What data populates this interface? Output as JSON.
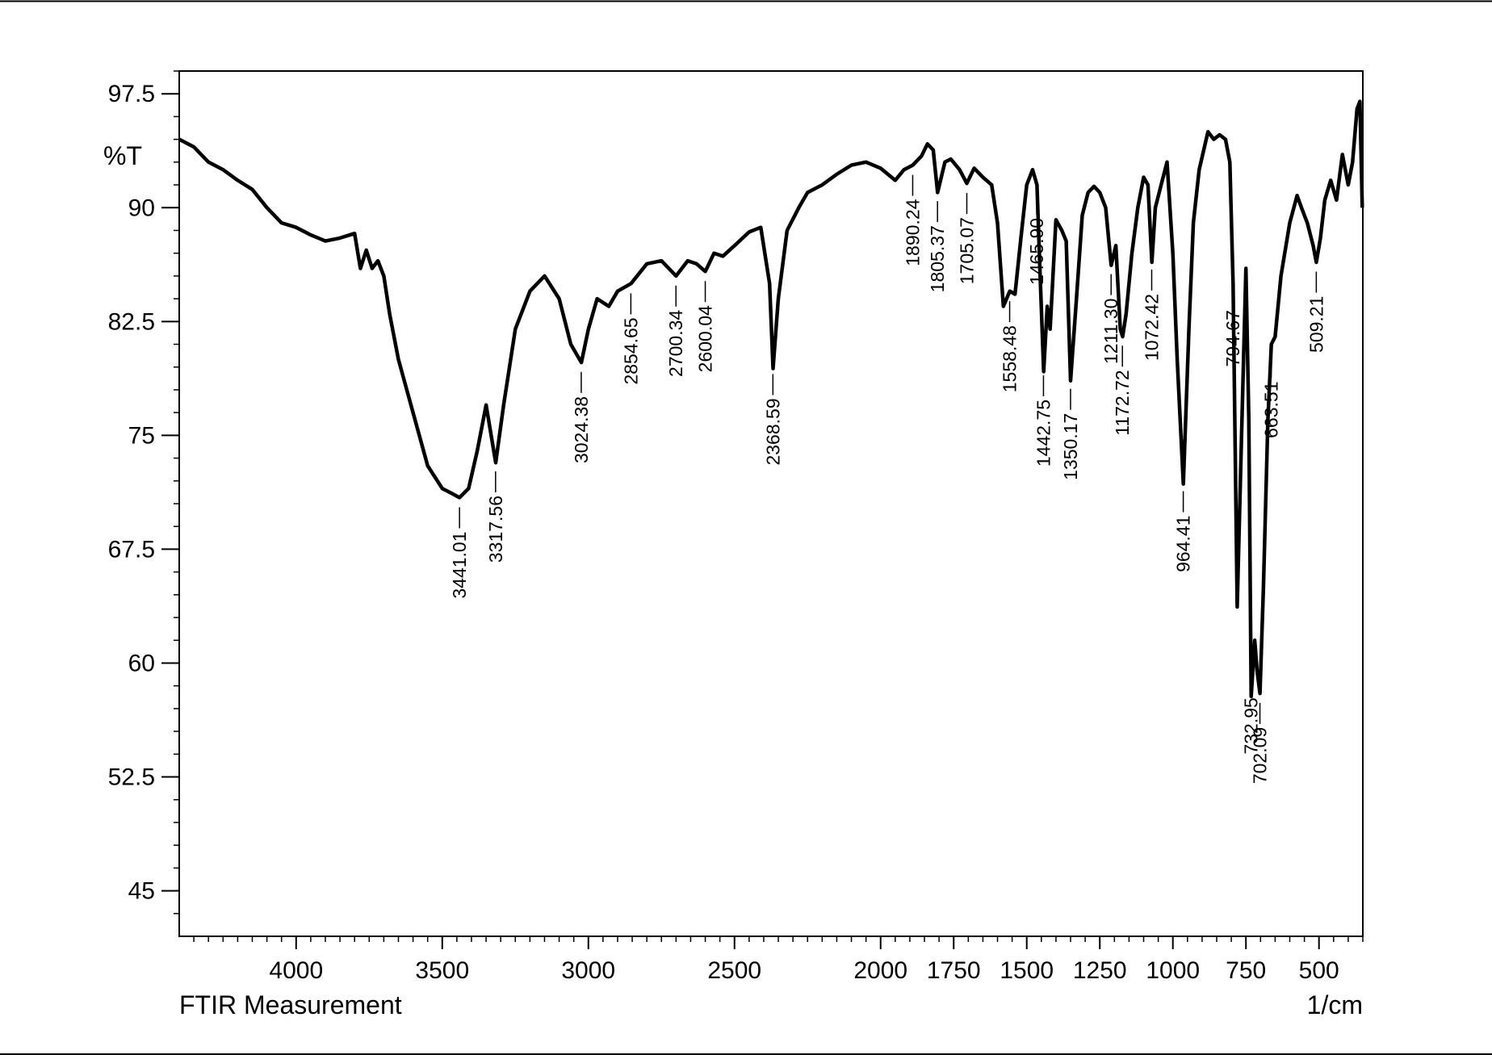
{
  "chart_data": {
    "type": "line",
    "xlabel": "1/cm",
    "ylabel": "%T",
    "caption": "FTIR Measurement",
    "xlim": [
      4400,
      350
    ],
    "ylim": [
      42,
      99
    ],
    "x_ticks": [
      4000,
      3500,
      3000,
      2500,
      2000,
      1750,
      1500,
      1250,
      1000,
      750,
      500
    ],
    "x_tick_labels": [
      "4000",
      "3500",
      "3000",
      "2500",
      "2000",
      "1750",
      "1500",
      "1250",
      "1000",
      "750",
      "500"
    ],
    "y_ticks": [
      97.5,
      90,
      82.5,
      75,
      67.5,
      60,
      52.5,
      45
    ],
    "y_tick_labels": [
      "97.5",
      "90",
      "82.5",
      "75",
      "67.5",
      "60",
      "52.5",
      "45"
    ],
    "grid": false,
    "series": [
      {
        "x": [
          4400,
          4350,
          4300,
          4250,
          4200,
          4150,
          4100,
          4050,
          4000,
          3950,
          3900,
          3850,
          3800,
          3780,
          3760,
          3740,
          3720,
          3700,
          3680,
          3650,
          3600,
          3550,
          3500,
          3470,
          3441,
          3410,
          3380,
          3350,
          3317,
          3290,
          3250,
          3200,
          3150,
          3100,
          3060,
          3024,
          3000,
          2970,
          2930,
          2900,
          2854,
          2800,
          2750,
          2700,
          2660,
          2630,
          2600,
          2570,
          2540,
          2500,
          2450,
          2410,
          2380,
          2368,
          2350,
          2320,
          2280,
          2250,
          2200,
          2150,
          2100,
          2050,
          2000,
          1950,
          1920,
          1890,
          1860,
          1840,
          1820,
          1805,
          1780,
          1760,
          1730,
          1705,
          1680,
          1650,
          1620,
          1600,
          1580,
          1558,
          1540,
          1520,
          1500,
          1480,
          1465,
          1455,
          1442,
          1430,
          1420,
          1400,
          1380,
          1365,
          1350,
          1330,
          1310,
          1290,
          1270,
          1250,
          1230,
          1211,
          1195,
          1180,
          1172,
          1160,
          1140,
          1120,
          1100,
          1085,
          1072,
          1060,
          1040,
          1020,
          1000,
          985,
          964,
          945,
          930,
          910,
          880,
          860,
          840,
          820,
          805,
          794,
          780,
          765,
          750,
          740,
          732,
          720,
          712,
          702,
          690,
          675,
          663,
          650,
          630,
          600,
          575,
          560,
          540,
          520,
          509,
          495,
          480,
          460,
          440,
          420,
          400,
          385,
          370,
          360,
          352
        ],
        "y": [
          94.5,
          94.0,
          93.0,
          92.5,
          91.8,
          91.2,
          90.0,
          89.0,
          88.7,
          88.2,
          87.8,
          88.0,
          88.3,
          86.0,
          87.2,
          86.0,
          86.5,
          85.5,
          83.0,
          80.0,
          76.5,
          73.0,
          71.5,
          71.2,
          70.9,
          71.5,
          74.0,
          77.0,
          73.2,
          77.0,
          82.0,
          84.5,
          85.5,
          84.0,
          81.0,
          79.8,
          82.0,
          84.0,
          83.5,
          84.5,
          85.0,
          86.3,
          86.5,
          85.5,
          86.5,
          86.3,
          85.8,
          87.0,
          86.8,
          87.5,
          88.4,
          88.7,
          85.0,
          79.4,
          84.0,
          88.5,
          90.0,
          91.0,
          91.5,
          92.2,
          92.8,
          93.0,
          92.6,
          91.8,
          92.5,
          92.8,
          93.4,
          94.2,
          93.8,
          91.0,
          93.0,
          93.2,
          92.5,
          91.6,
          92.6,
          92.0,
          91.5,
          89.0,
          83.5,
          84.5,
          84.3,
          88.0,
          91.5,
          92.5,
          91.5,
          86.0,
          79.2,
          83.5,
          82.0,
          89.2,
          88.5,
          87.8,
          78.6,
          84.0,
          89.5,
          91.0,
          91.4,
          91.0,
          90.0,
          86.2,
          87.5,
          82.0,
          81.5,
          83.0,
          87.0,
          90.0,
          92.0,
          91.5,
          86.4,
          90.0,
          91.5,
          93.0,
          87.0,
          80.0,
          71.8,
          82.0,
          89.0,
          92.5,
          95.0,
          94.5,
          94.8,
          94.5,
          93.0,
          85.0,
          63.7,
          75.0,
          86.0,
          76.0,
          57.8,
          61.5,
          59.5,
          58.0,
          65.0,
          76.0,
          81.0,
          81.5,
          85.5,
          89.0,
          90.8,
          90.0,
          89.0,
          87.5,
          86.4,
          88.0,
          90.5,
          91.8,
          90.5,
          93.5,
          91.5,
          93.0,
          96.5,
          97.0,
          90.0
        ]
      }
    ],
    "peaks": [
      {
        "x": 3441.01,
        "label": "3441.01"
      },
      {
        "x": 3317.56,
        "label": "3317.56"
      },
      {
        "x": 3024.38,
        "label": "3024.38"
      },
      {
        "x": 2854.65,
        "label": "2854.65"
      },
      {
        "x": 2700.34,
        "label": "2700.34"
      },
      {
        "x": 2600.04,
        "label": "2600.04"
      },
      {
        "x": 2368.59,
        "label": "2368.59"
      },
      {
        "x": 1890.24,
        "label": "1890.24"
      },
      {
        "x": 1805.37,
        "label": "1805.37"
      },
      {
        "x": 1705.07,
        "label": "1705.07"
      },
      {
        "x": 1558.48,
        "label": "1558.48"
      },
      {
        "x": 1465.9,
        "label": "1465.90"
      },
      {
        "x": 1442.75,
        "label": "1442.75"
      },
      {
        "x": 1350.17,
        "label": "1350.17"
      },
      {
        "x": 1211.3,
        "label": "1211.30"
      },
      {
        "x": 1172.72,
        "label": "1172.72"
      },
      {
        "x": 1072.42,
        "label": "1072.42"
      },
      {
        "x": 964.41,
        "label": "964.41"
      },
      {
        "x": 794.67,
        "label": "794.67"
      },
      {
        "x": 732.95,
        "label": "732.95"
      },
      {
        "x": 702.09,
        "label": "702.09"
      },
      {
        "x": 663.51,
        "label": "663.51"
      },
      {
        "x": 509.21,
        "label": "509.21"
      }
    ]
  }
}
